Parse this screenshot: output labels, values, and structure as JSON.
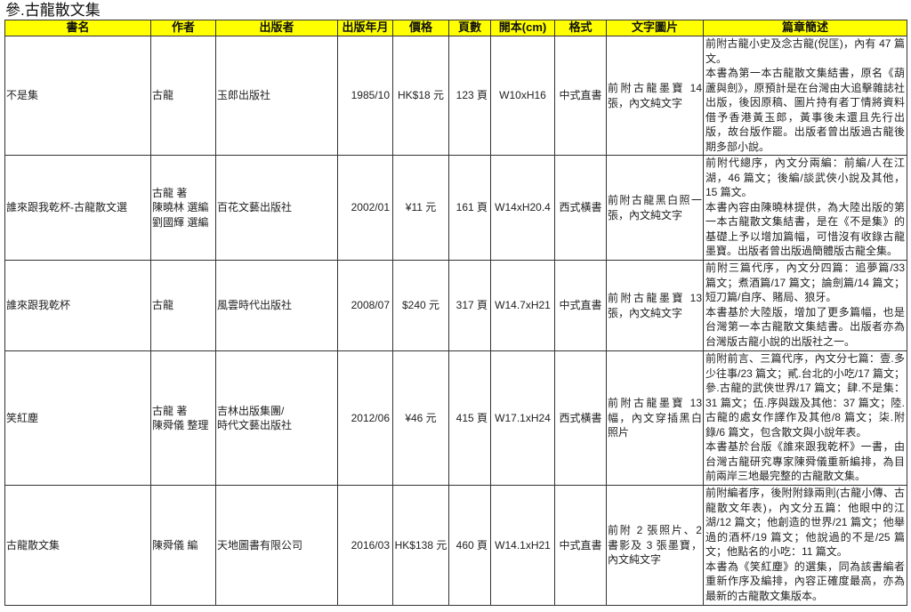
{
  "title": "參.古龍散文集",
  "header_color": "#ffff00",
  "columns": [
    "書名",
    "作者",
    "出版者",
    "出版年月",
    "價格",
    "頁數",
    "開本(cm)",
    "格式",
    "文字圖片",
    "篇章簡述"
  ],
  "rows": [
    {
      "name": "不是集",
      "author": [
        "古龍"
      ],
      "publisher": [
        "玉郎出版社"
      ],
      "date": "1985/10",
      "price": "HK$18 元",
      "pages": "123 頁",
      "size": "W10xH16",
      "format": "中式直書",
      "pictures": "前附古龍墨寶 14 張，內文純文字",
      "desc": [
        "前附古龍小史及念古龍(倪匡)，內有 47 篇文。",
        "本書為第一本古龍散文集結書，原名《葫蘆與劍》，原預計是在台灣由大追擊雜誌社出版，後因原稿、圖片持有者丁情將資料借予香港黃玉郎，黃事後未還且先行出版，故台版作罷。出版者曾出版過古龍後期多部小說。"
      ]
    },
    {
      "name": "誰來跟我乾杯-古龍散文選",
      "author": [
        "古龍 著",
        "陳曉林 選編",
        "劉國輝 選編"
      ],
      "publisher": [
        "百花文藝出版社"
      ],
      "date": "2002/01",
      "price": "¥11 元",
      "pages": "161 頁",
      "size": "W14xH20.4",
      "format": "西式橫書",
      "pictures": "前附古龍黑白照一張，內文純文字",
      "desc": [
        "前附代總序，內文分兩編：前編/人在江湖，46 篇文；後編/談武俠小說及其他，15 篇文。",
        "本書內容由陳曉林提供，為大陸出版的第一本古龍散文集結書，是在《不是集》的基礎上予以增加篇幅，可惜沒有收錄古龍墨寶。出版者曾出版過簡體版古龍全集。"
      ]
    },
    {
      "name": "誰來跟我乾杯",
      "author": [
        "古龍"
      ],
      "publisher": [
        "風雲時代出版社"
      ],
      "date": "2008/07",
      "price": "$240 元",
      "pages": "317 頁",
      "size": "W14.7xH21",
      "format": "中式直書",
      "pictures": "前附古龍墨寶 13 張，內文純文字",
      "desc": [
        "前附三篇代序，內文分四篇：追夢篇/33 篇文；煮酒篇/17 篇文；論劍篇/14 篇文；短刀篇/自序、賭局、狼牙。",
        "本書基於大陸版，增加了更多篇幅，也是台灣第一本古龍散文集結書。出版者亦為台灣版古龍小說的出版社之一。"
      ]
    },
    {
      "name": "笑紅塵",
      "author": [
        "古龍 著",
        "陳舜儀 整理"
      ],
      "publisher": [
        "吉林出版集團/",
        "時代文藝出版社"
      ],
      "date": "2012/06",
      "price": "¥46 元",
      "pages": "415 頁",
      "size": "W17.1xH24",
      "format": "西式橫書",
      "pictures": "前附古龍墨寶 13 幅，內文穿插黑白照片",
      "desc": [
        "前附前言、三篇代序，內文分七篇：壹.多少往事/23 篇文；貳.台北的小吃/17 篇文；參.古龍的武俠世界/17 篇文；肆.不是集：31 篇文；伍.序與跋及其他：37 篇文；陸.古龍的處女作譯作及其他/8 篇文；柒.附錄/6 篇文，包含散文與小說年表。",
        "本書基於台版《誰來跟我乾杯》一書，由台灣古龍研究專家陳舜儀重新編排，為目前兩岸三地最完整的古龍散文集。"
      ]
    },
    {
      "name": "古龍散文集",
      "author": [
        "陳舜儀 編"
      ],
      "publisher": [
        "天地圖書有限公司"
      ],
      "date": "2016/03",
      "price": "HK$138 元",
      "pages": "460 頁",
      "size": "W14.1xH21",
      "format": "中式直書",
      "pictures": "前附 2 張照片、2 書影及 3 張墨寶，內文純文字",
      "desc": [
        "前附編者序，後附附錄兩則(古龍小傳、古龍散文年表)，內文分五篇：他眼中的江湖/12 篇文；他創造的世界/21 篇文；他舉過的酒杯/19 篇文；他說過的不是/25 篇文；他點名的小吃：11 篇文。",
        "本書為《笑紅塵》的選集，同為該書編者重新作序及編排，內容正確度最高，亦為最新的古龍散文集版本。"
      ]
    }
  ]
}
